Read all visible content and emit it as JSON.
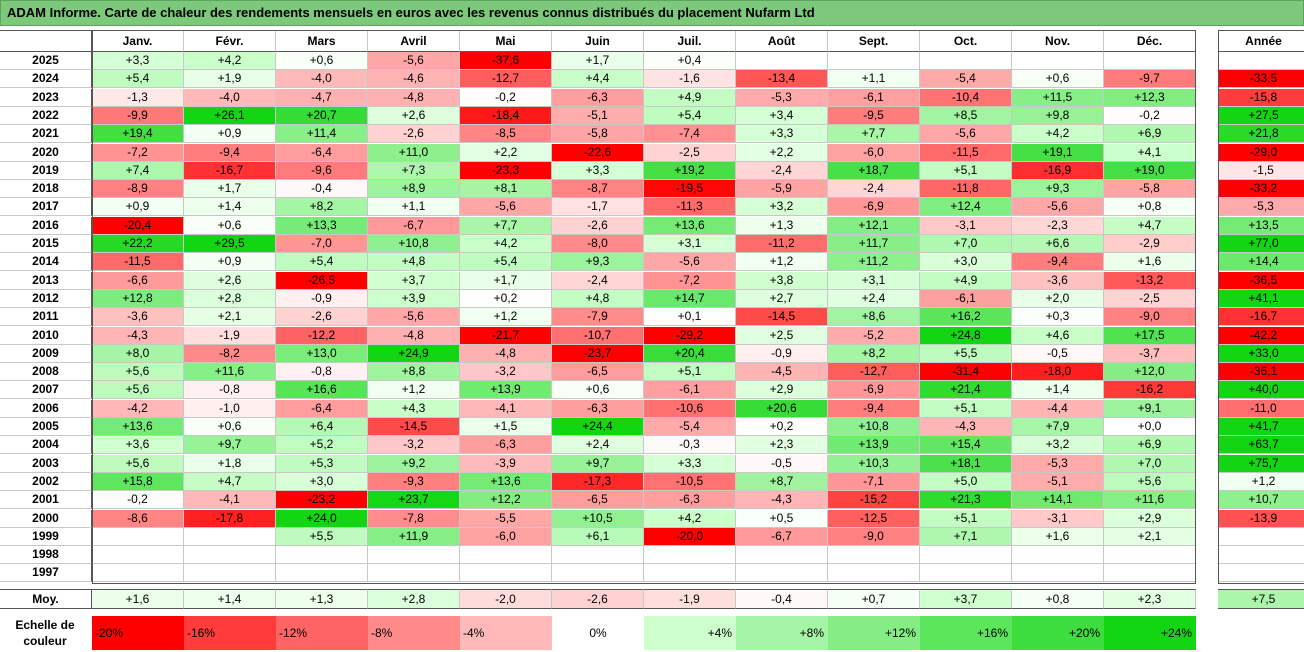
{
  "title": "ADAM Informe. Carte de chaleur des rendements mensuels en euros avec les revenus connus distribués du placement Nufarm Ltd",
  "chart_data": {
    "type": "heatmap",
    "months": [
      "Janv.",
      "Févr.",
      "Mars",
      "Avril",
      "Mai",
      "Juin",
      "Juil.",
      "Août",
      "Sept.",
      "Oct.",
      "Nov.",
      "Déc."
    ],
    "year_header": "Année",
    "avg_label": "Moy.",
    "rows": [
      {
        "year": "2025",
        "values": [
          "+3,3",
          "+4,2",
          "+0,6",
          "-5,6",
          "-37,6",
          "+1,7",
          "+0,4",
          "",
          "",
          "",
          "",
          ""
        ],
        "annual": ""
      },
      {
        "year": "2024",
        "values": [
          "+5,4",
          "+1,9",
          "-4,0",
          "-4,6",
          "-12,7",
          "+4,4",
          "-1,6",
          "-13,4",
          "+1,1",
          "-5,4",
          "+0,6",
          "-9,7"
        ],
        "annual": "-33,5"
      },
      {
        "year": "2023",
        "values": [
          "-1,3",
          "-4,0",
          "-4,7",
          "-4,8",
          "-0,2",
          "-6,3",
          "+4,9",
          "-5,3",
          "-6,1",
          "-10,4",
          "+11,5",
          "+12,3"
        ],
        "annual": "-15,8"
      },
      {
        "year": "2022",
        "values": [
          "-9,9",
          "+26,1",
          "+20,7",
          "+2,6",
          "-18,4",
          "-5,1",
          "+5,4",
          "+3,4",
          "-9,5",
          "+8,5",
          "+9,8",
          "-0,2"
        ],
        "annual": "+27,5"
      },
      {
        "year": "2021",
        "values": [
          "+19,4",
          "+0,9",
          "+11,4",
          "-2,6",
          "-8,5",
          "-5,8",
          "-7,4",
          "+3,3",
          "+7,7",
          "-5,6",
          "+4,2",
          "+6,9"
        ],
        "annual": "+21,8"
      },
      {
        "year": "2020",
        "values": [
          "-7,2",
          "-9,4",
          "-6,4",
          "+11,0",
          "+2,2",
          "-22,6",
          "-2,5",
          "+2,2",
          "-6,0",
          "-11,5",
          "+19,1",
          "+4,1"
        ],
        "annual": "-29,0"
      },
      {
        "year": "2019",
        "values": [
          "+7,4",
          "-16,7",
          "-9,6",
          "+7,3",
          "-23,3",
          "+3,3",
          "+19,2",
          "-2,4",
          "+18,7",
          "+5,1",
          "-16,9",
          "+19,0"
        ],
        "annual": "-1,5"
      },
      {
        "year": "2018",
        "values": [
          "-8,9",
          "+1,7",
          "-0,4",
          "+8,9",
          "+8,1",
          "-8,7",
          "-19,5",
          "-5,9",
          "-2,4",
          "-11,8",
          "+9,3",
          "-5,8"
        ],
        "annual": "-33,2"
      },
      {
        "year": "2017",
        "values": [
          "+0,9",
          "+1,4",
          "+8,2",
          "+1,1",
          "-5,6",
          "-1,7",
          "-11,3",
          "+3,2",
          "-6,9",
          "+12,4",
          "-5,6",
          "+0,8"
        ],
        "annual": "-5,3"
      },
      {
        "year": "2016",
        "values": [
          "-20,4",
          "+0,6",
          "+13,3",
          "-6,7",
          "+7,7",
          "-2,6",
          "+13,6",
          "+1,3",
          "+12,1",
          "-3,1",
          "-2,3",
          "+4,7"
        ],
        "annual": "+13,5"
      },
      {
        "year": "2015",
        "values": [
          "+22,2",
          "+29,5",
          "-7,0",
          "+10,8",
          "+4,2",
          "-8,0",
          "+3,1",
          "-11,2",
          "+11,7",
          "+7,0",
          "+6,6",
          "-2,9"
        ],
        "annual": "+77,0"
      },
      {
        "year": "2014",
        "values": [
          "-11,5",
          "+0,9",
          "+5,4",
          "+4,8",
          "+5,4",
          "+9,3",
          "-5,6",
          "+1,2",
          "+11,2",
          "+3,0",
          "-9,4",
          "+1,6"
        ],
        "annual": "+14,4"
      },
      {
        "year": "2013",
        "values": [
          "-6,6",
          "+2,6",
          "-26,5",
          "+3,7",
          "+1,7",
          "-2,4",
          "-7,2",
          "+3,8",
          "+3,1",
          "+4,9",
          "-3,6",
          "-13,2"
        ],
        "annual": "-36,5"
      },
      {
        "year": "2012",
        "values": [
          "+12,8",
          "+2,8",
          "-0,9",
          "+3,9",
          "+0,2",
          "+4,8",
          "+14,7",
          "+2,7",
          "+2,4",
          "-6,1",
          "+2,0",
          "-2,5"
        ],
        "annual": "+41,1"
      },
      {
        "year": "2011",
        "values": [
          "-3,6",
          "+2,1",
          "-2,6",
          "-5,6",
          "+1,2",
          "-7,9",
          "+0,1",
          "-14,5",
          "+8,6",
          "+16,2",
          "+0,3",
          "-9,0"
        ],
        "annual": "-16,7"
      },
      {
        "year": "2010",
        "values": [
          "-4,3",
          "-1,9",
          "-12,2",
          "-4,8",
          "-21,7",
          "-10,7",
          "-29,2",
          "+2,5",
          "-5,2",
          "+24,8",
          "+4,6",
          "+17,5"
        ],
        "annual": "-42,2"
      },
      {
        "year": "2009",
        "values": [
          "+8,0",
          "-8,2",
          "+13,0",
          "+24,9",
          "-4,8",
          "-23,7",
          "+20,4",
          "-0,9",
          "+8,2",
          "+5,5",
          "-0,5",
          "-3,7"
        ],
        "annual": "+33,0"
      },
      {
        "year": "2008",
        "values": [
          "+5,6",
          "+11,6",
          "-0,8",
          "+8,8",
          "-3,2",
          "-6,5",
          "+5,1",
          "-4,5",
          "-12,7",
          "-31,4",
          "-18,0",
          "+12,0"
        ],
        "annual": "-36,1"
      },
      {
        "year": "2007",
        "values": [
          "+5,6",
          "-0,8",
          "+16,6",
          "+1,2",
          "+13,9",
          "+0,6",
          "-6,1",
          "+2,9",
          "-6,9",
          "+21,4",
          "+1,4",
          "-16,2"
        ],
        "annual": "+40,0"
      },
      {
        "year": "2006",
        "values": [
          "-4,2",
          "-1,0",
          "-6,4",
          "+4,3",
          "-4,1",
          "-6,3",
          "-10,6",
          "+20,6",
          "-9,4",
          "+5,1",
          "-4,4",
          "+9,1"
        ],
        "annual": "-11,0"
      },
      {
        "year": "2005",
        "values": [
          "+13,6",
          "+0,6",
          "+6,4",
          "-14,5",
          "+1,5",
          "+24,4",
          "-5,4",
          "+0,2",
          "+10,8",
          "-4,3",
          "+7,9",
          "+0,0"
        ],
        "annual": "+41,7"
      },
      {
        "year": "2004",
        "values": [
          "+3,6",
          "+9,7",
          "+5,2",
          "-3,2",
          "-6,3",
          "+2,4",
          "-0,3",
          "+2,3",
          "+13,9",
          "+15,4",
          "+3,2",
          "+6,9"
        ],
        "annual": "+63,7"
      },
      {
        "year": "2003",
        "values": [
          "+5,6",
          "+1,8",
          "+5,3",
          "+9,2",
          "-3,9",
          "+9,7",
          "+3,3",
          "-0,5",
          "+10,3",
          "+18,1",
          "-5,3",
          "+7,0"
        ],
        "annual": "+75,7"
      },
      {
        "year": "2002",
        "values": [
          "+15,8",
          "+4,7",
          "+3,0",
          "-9,3",
          "+13,6",
          "-17,3",
          "-10,5",
          "+8,7",
          "-7,1",
          "+5,0",
          "-5,1",
          "+5,6"
        ],
        "annual": "+1,2"
      },
      {
        "year": "2001",
        "values": [
          "-0,2",
          "-4,1",
          "-23,2",
          "+23,7",
          "+12,2",
          "-6,5",
          "-6,3",
          "-4,3",
          "-15,2",
          "+21,3",
          "+14,1",
          "+11,6"
        ],
        "annual": "+10,7"
      },
      {
        "year": "2000",
        "values": [
          "-8,6",
          "-17,8",
          "+24,0",
          "-7,8",
          "-5,5",
          "+10,5",
          "+4,2",
          "+0,5",
          "-12,5",
          "+5,1",
          "-3,1",
          "+2,9"
        ],
        "annual": "-13,9"
      },
      {
        "year": "1999",
        "values": [
          "",
          "",
          "+5,5",
          "+11,9",
          "-6,0",
          "+6,1",
          "-20,0",
          "-6,7",
          "-9,0",
          "+7,1",
          "+1,6",
          "+2,1"
        ],
        "annual": ""
      },
      {
        "year": "1998",
        "values": [
          "",
          "",
          "",
          "",
          "",
          "",
          "",
          "",
          "",
          "",
          "",
          ""
        ],
        "annual": ""
      },
      {
        "year": "1997",
        "values": [
          "",
          "",
          "",
          "",
          "",
          "",
          "",
          "",
          "",
          "",
          "",
          ""
        ],
        "annual": ""
      }
    ],
    "averages": [
      "+1,6",
      "+1,4",
      "+1,3",
      "+2,8",
      "-2,0",
      "-2,6",
      "-1,9",
      "-0,4",
      "+0,7",
      "+3,7",
      "+0,8",
      "+2,3"
    ],
    "annual_average": "+7,5",
    "scale": {
      "label_line1": "Echelle de",
      "label_line2": "couleur",
      "stops": [
        {
          "label": "-20%",
          "value": -20,
          "color": "#ff0000"
        },
        {
          "label": "-16%",
          "value": -16,
          "color": "#ff3b3b"
        },
        {
          "label": "-12%",
          "value": -12,
          "color": "#ff6464"
        },
        {
          "label": "-8%",
          "value": -8,
          "color": "#ff8a8a"
        },
        {
          "label": "-4%",
          "value": -4,
          "color": "#ffb9b9"
        },
        {
          "label": "0%",
          "value": 0,
          "color": "#ffffff"
        },
        {
          "label": "+4%",
          "value": 4,
          "color": "#ccffcc"
        },
        {
          "label": "+8%",
          "value": 8,
          "color": "#a6f5a6"
        },
        {
          "label": "+12%",
          "value": 12,
          "color": "#84ee84"
        },
        {
          "label": "+16%",
          "value": 16,
          "color": "#5ce65c"
        },
        {
          "label": "+20%",
          "value": 20,
          "color": "#3ddd3d"
        },
        {
          "label": "+24%",
          "value": 24,
          "color": "#12d612"
        }
      ]
    }
  }
}
